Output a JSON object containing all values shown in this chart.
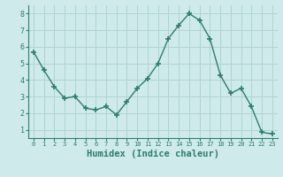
{
  "x": [
    0,
    1,
    2,
    3,
    4,
    5,
    6,
    7,
    8,
    9,
    10,
    11,
    12,
    13,
    14,
    15,
    16,
    17,
    18,
    19,
    20,
    21,
    22,
    23
  ],
  "y": [
    5.7,
    4.6,
    3.6,
    2.9,
    3.0,
    2.3,
    2.2,
    2.4,
    1.9,
    2.7,
    3.5,
    4.1,
    5.0,
    6.5,
    7.3,
    8.0,
    7.6,
    6.5,
    4.3,
    3.2,
    3.5,
    2.4,
    0.85,
    0.75
  ],
  "line_color": "#2e7d6e",
  "marker": "+",
  "marker_size": 4,
  "bg_color": "#ceeaea",
  "grid_color": "#b0d4d4",
  "tick_color": "#2e7d6e",
  "xlabel": "Humidex (Indice chaleur)",
  "xlabel_fontsize": 7.5,
  "ylabel_ticks": [
    1,
    2,
    3,
    4,
    5,
    6,
    7,
    8
  ],
  "xlim": [
    -0.5,
    23.5
  ],
  "ylim": [
    0.5,
    8.5
  ],
  "xtick_labels": [
    "0",
    "1",
    "2",
    "3",
    "4",
    "5",
    "6",
    "7",
    "8",
    "9",
    "10",
    "11",
    "12",
    "13",
    "14",
    "15",
    "16",
    "17",
    "18",
    "19",
    "20",
    "21",
    "22",
    "23"
  ]
}
